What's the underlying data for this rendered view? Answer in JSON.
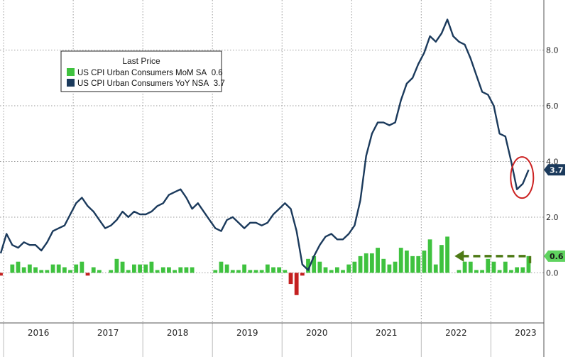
{
  "chart_data": {
    "type": "line",
    "title": "",
    "xlabel": "",
    "ylabel": "",
    "x_start": "2015-12",
    "year_labels": [
      "2016",
      "2017",
      "2018",
      "2019",
      "2020",
      "2021",
      "2022",
      "2023"
    ],
    "yticks": [
      "0.0",
      "2.0",
      "4.0",
      "6.0",
      "8.0"
    ],
    "ylim": [
      -1.8,
      9.8
    ],
    "grid": true,
    "legend_position": "top-left",
    "legend_title": "Last Price",
    "series": [
      {
        "name": "US CPI Urban Consumers YoY NSA",
        "last_value_label": "3.7",
        "type": "line",
        "color": "#1b3a5c",
        "values": [
          0.7,
          1.4,
          1.0,
          0.9,
          1.1,
          1.0,
          1.0,
          0.8,
          1.1,
          1.5,
          1.6,
          1.7,
          2.1,
          2.5,
          2.7,
          2.4,
          2.2,
          1.9,
          1.6,
          1.7,
          1.9,
          2.2,
          2.0,
          2.2,
          2.1,
          2.1,
          2.2,
          2.4,
          2.5,
          2.8,
          2.9,
          3.0,
          2.7,
          2.3,
          2.5,
          2.2,
          1.9,
          1.6,
          1.5,
          1.9,
          2.0,
          1.8,
          1.6,
          1.8,
          1.8,
          1.7,
          1.8,
          2.1,
          2.3,
          2.5,
          2.3,
          1.5,
          0.3,
          0.1,
          0.6,
          1.0,
          1.3,
          1.4,
          1.2,
          1.2,
          1.4,
          1.7,
          2.6,
          4.2,
          5.0,
          5.4,
          5.4,
          5.3,
          5.4,
          6.2,
          6.8,
          7.0,
          7.5,
          7.9,
          8.5,
          8.3,
          8.6,
          9.1,
          8.5,
          8.3,
          8.2,
          7.7,
          7.1,
          6.5,
          6.4,
          6.0,
          5.0,
          4.9,
          4.0,
          3.0,
          3.2,
          3.7
        ]
      },
      {
        "name": "US CPI Urban Consumers MoM SA",
        "last_value_label": "0.6",
        "type": "bar",
        "color": "#3fc23f",
        "negative_color": "#c42020",
        "values": [
          -0.1,
          0.0,
          0.3,
          0.4,
          0.2,
          0.3,
          0.2,
          0.1,
          0.1,
          0.3,
          0.3,
          0.2,
          0.1,
          0.3,
          0.4,
          -0.1,
          0.2,
          0.1,
          0.0,
          0.1,
          0.5,
          0.4,
          0.1,
          0.3,
          0.3,
          0.3,
          0.4,
          0.1,
          0.2,
          0.2,
          0.1,
          0.2,
          0.2,
          0.2,
          0.0,
          0.0,
          0.0,
          0.1,
          0.4,
          0.3,
          0.1,
          0.1,
          0.3,
          0.1,
          0.1,
          0.1,
          0.3,
          0.2,
          0.2,
          0.1,
          -0.4,
          -0.8,
          -0.1,
          0.5,
          0.6,
          0.4,
          0.2,
          0.1,
          0.2,
          0.1,
          0.3,
          0.4,
          0.6,
          0.7,
          0.7,
          0.9,
          0.5,
          0.3,
          0.4,
          0.9,
          0.8,
          0.6,
          0.6,
          0.8,
          1.2,
          0.3,
          1.0,
          1.3,
          0.0,
          0.1,
          0.4,
          0.4,
          0.1,
          0.1,
          0.5,
          0.4,
          0.1,
          0.4,
          0.1,
          0.2,
          0.2,
          0.6
        ]
      }
    ],
    "annotations": [
      {
        "type": "circle",
        "label": "",
        "color": "#cc2222"
      },
      {
        "type": "dashed-arrow",
        "label": "",
        "color": "#4e7a16"
      }
    ]
  }
}
